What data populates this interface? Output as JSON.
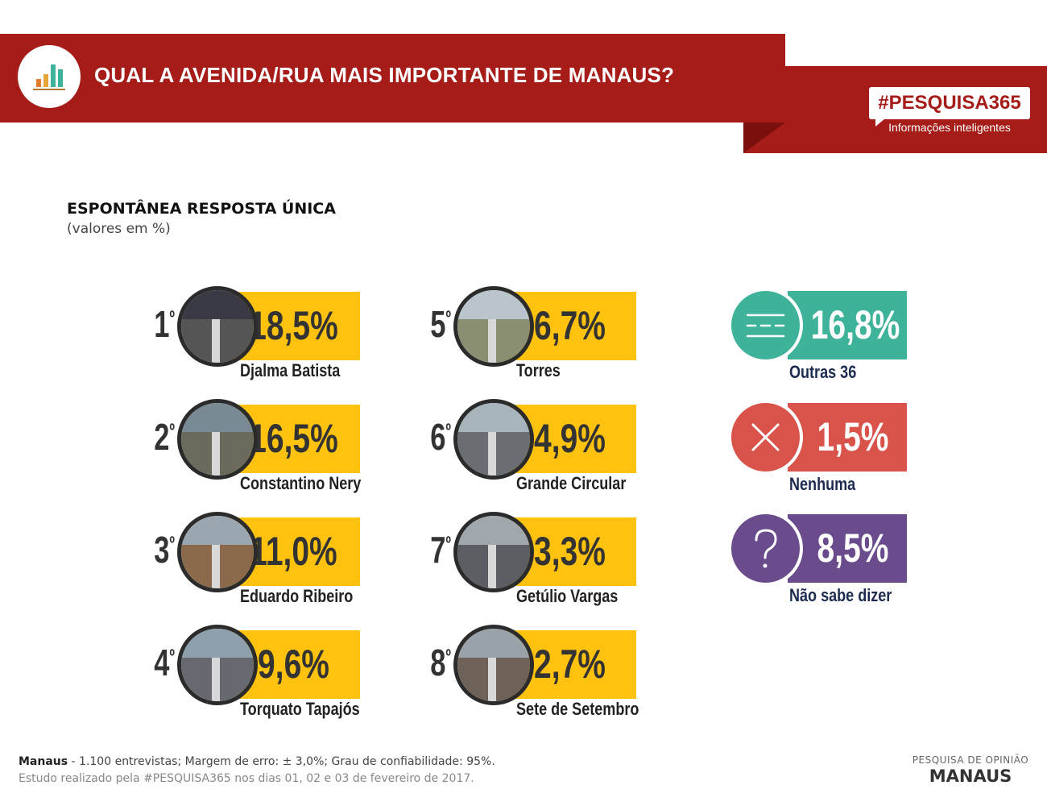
{
  "header": {
    "title": "QUAL A AVENIDA/RUA MAIS IMPORTANTE DE MANAUS?",
    "brand_tag": "#PESQUISA365",
    "brand_subtitle": "Informações inteligentes",
    "icon": "bar-chart-icon"
  },
  "chart_data": {
    "type": "bar",
    "title": "ESPONTÂNEA RESPOSTA ÚNICA",
    "subtitle": "(valores em %)",
    "unit": "%",
    "items": [
      {
        "rank": "1",
        "label": "Djalma Batista",
        "value": 18.5,
        "display": "18,5%"
      },
      {
        "rank": "2",
        "label": "Constantino Nery",
        "value": 16.5,
        "display": "16,5%"
      },
      {
        "rank": "3",
        "label": "Eduardo Ribeiro",
        "value": 11.0,
        "display": "11,0%"
      },
      {
        "rank": "4",
        "label": "Torquato Tapajós",
        "value": 9.6,
        "display": "9,6%"
      },
      {
        "rank": "5",
        "label": "Torres",
        "value": 6.7,
        "display": "6,7%"
      },
      {
        "rank": "6",
        "label": "Grande Circular",
        "value": 4.9,
        "display": "4,9%"
      },
      {
        "rank": "7",
        "label": "Getúlio Vargas",
        "value": 3.3,
        "display": "3,3%"
      },
      {
        "rank": "8",
        "label": "Sete de Setembro",
        "value": 2.7,
        "display": "2,7%"
      }
    ],
    "others": [
      {
        "label": "Outras 36",
        "value": 16.8,
        "display": "16,8%",
        "icon": "lines-icon",
        "color": "#3fb39a"
      },
      {
        "label": "Nenhuma",
        "value": 1.5,
        "display": "1,5%",
        "icon": "x-icon",
        "color": "#d9534a"
      },
      {
        "label": "Não sabe dizer",
        "value": 8.5,
        "display": "8,5%",
        "icon": "question-icon",
        "color": "#6a4c8c"
      }
    ],
    "colors": {
      "value_box": "#ffc20e",
      "banner": "#a51c18"
    }
  },
  "footer": {
    "city": "Manaus",
    "details": " - 1.100 entrevistas; Margem de erro: ± 3,0%; Grau de confiabilidade: 95%.",
    "study": "Estudo realizado pela #PESQUISA365 nos dias 01, 02 e 03 de fevereiro de 2017.",
    "brand_top": "PESQUISA DE OPINIÃO",
    "brand_bottom": "MANAUS"
  }
}
